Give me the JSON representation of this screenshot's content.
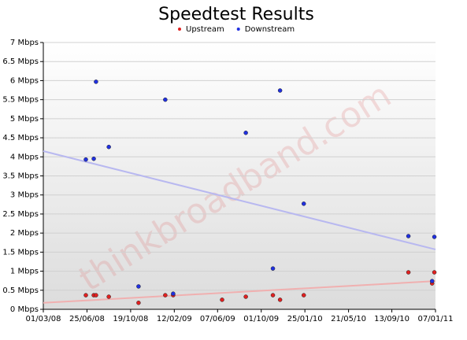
{
  "chart_data": {
    "type": "scatter",
    "title": "Speedtest Results",
    "watermark": "thinkbroadband.com",
    "legend": "top",
    "xlim": [
      "01/03/08",
      "07/01/11"
    ],
    "xticks": [
      "01/03/08",
      "25/06/08",
      "19/10/08",
      "12/02/09",
      "07/06/09",
      "01/10/09",
      "25/01/10",
      "21/05/10",
      "13/09/10",
      "07/01/11"
    ],
    "ylim": [
      0,
      7
    ],
    "yticks": [
      {
        "value": 0,
        "label": "0 Mbps"
      },
      {
        "value": 0.5,
        "label": "0.5 Mbps"
      },
      {
        "value": 1,
        "label": "1 Mbps"
      },
      {
        "value": 1.5,
        "label": "1.5 Mbps"
      },
      {
        "value": 2,
        "label": "2 Mbps"
      },
      {
        "value": 2.5,
        "label": "2.5 Mbps"
      },
      {
        "value": 3,
        "label": "3 Mbps"
      },
      {
        "value": 3.5,
        "label": "3.5 Mbps"
      },
      {
        "value": 4,
        "label": "4 Mbps"
      },
      {
        "value": 4.5,
        "label": "4.5 Mbps"
      },
      {
        "value": 5,
        "label": "5 Mbps"
      },
      {
        "value": 5.5,
        "label": "5.5 Mbps"
      },
      {
        "value": 6,
        "label": "6 Mbps"
      },
      {
        "value": 6.5,
        "label": "6.5 Mbps"
      },
      {
        "value": 7,
        "label": "7 Mbps"
      }
    ],
    "grid": true,
    "series": [
      {
        "name": "Upstream",
        "color": "#e02020",
        "trend_color": "#f0b0b0",
        "trend": [
          0.17,
          0.74
        ],
        "x": [
          "22/06/08",
          "13/07/08",
          "19/07/08",
          "22/08/08",
          "09/11/08",
          "19/01/09",
          "09/02/09",
          "19/06/09",
          "21/08/09",
          "01/11/09",
          "20/11/09",
          "22/01/10",
          "27/10/10",
          "29/12/10",
          "04/01/11"
        ],
        "values": [
          0.37,
          0.37,
          0.37,
          0.33,
          0.17,
          0.37,
          0.37,
          0.25,
          0.33,
          0.37,
          0.25,
          0.37,
          0.97,
          0.68,
          0.97
        ]
      },
      {
        "name": "Downstream",
        "color": "#2030e0",
        "trend_color": "#b8b8f0",
        "trend": [
          4.15,
          1.57
        ],
        "x": [
          "22/06/08",
          "13/07/08",
          "19/07/08",
          "22/08/08",
          "09/11/08",
          "19/01/09",
          "09/02/09",
          "21/08/09",
          "01/11/09",
          "20/11/09",
          "22/01/10",
          "27/10/10",
          "29/12/10",
          "04/01/11"
        ],
        "values": [
          3.93,
          3.95,
          5.97,
          4.26,
          0.6,
          5.5,
          0.41,
          4.63,
          1.07,
          5.74,
          2.77,
          1.92,
          0.74,
          1.9
        ]
      }
    ]
  }
}
